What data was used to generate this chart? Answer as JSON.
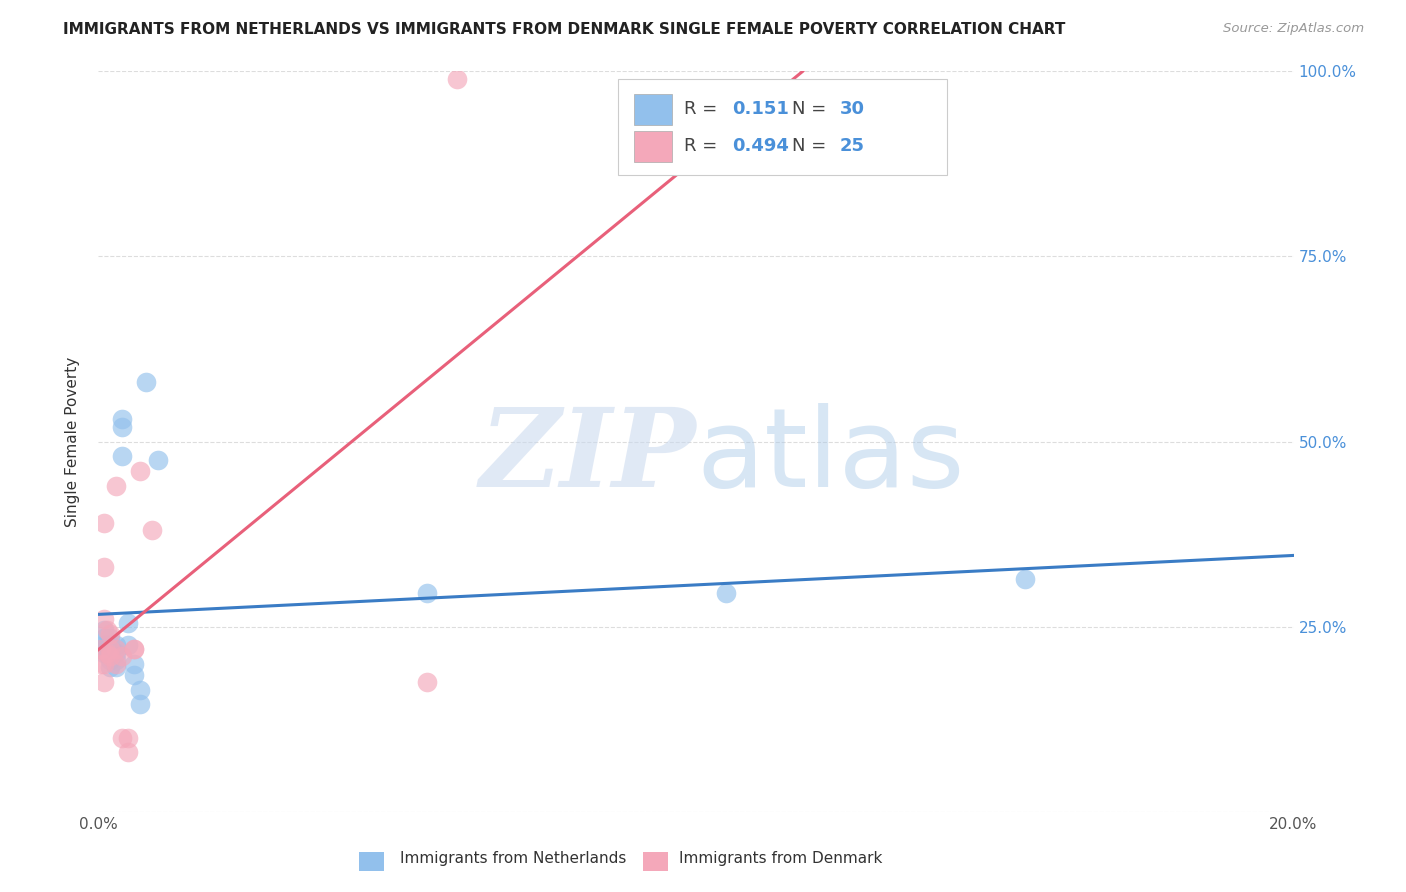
{
  "title": "IMMIGRANTS FROM NETHERLANDS VS IMMIGRANTS FROM DENMARK SINGLE FEMALE POVERTY CORRELATION CHART",
  "source": "Source: ZipAtlas.com",
  "ylabel": "Single Female Poverty",
  "xlim": [
    0.0,
    0.2
  ],
  "ylim": [
    0.0,
    1.0
  ],
  "legend_R_blue": "0.151",
  "legend_N_blue": "30",
  "legend_R_pink": "0.494",
  "legend_N_pink": "25",
  "blue_color": "#92C0EC",
  "pink_color": "#F4A8BA",
  "blue_line_color": "#3A7CC5",
  "pink_line_color": "#E8607A",
  "watermark_zip": "ZIP",
  "watermark_atlas": "atlas",
  "background_color": "#ffffff",
  "grid_color": "#dddddd",
  "netherlands_x": [
    0.0005,
    0.001,
    0.001,
    0.001,
    0.001,
    0.0015,
    0.0015,
    0.002,
    0.002,
    0.002,
    0.002,
    0.002,
    0.003,
    0.003,
    0.003,
    0.003,
    0.004,
    0.004,
    0.004,
    0.005,
    0.005,
    0.006,
    0.006,
    0.007,
    0.007,
    0.008,
    0.01,
    0.055,
    0.105,
    0.155
  ],
  "netherlands_y": [
    0.22,
    0.245,
    0.235,
    0.225,
    0.215,
    0.225,
    0.215,
    0.235,
    0.225,
    0.215,
    0.205,
    0.195,
    0.225,
    0.215,
    0.205,
    0.195,
    0.53,
    0.52,
    0.48,
    0.255,
    0.225,
    0.2,
    0.185,
    0.165,
    0.145,
    0.58,
    0.475,
    0.295,
    0.295,
    0.315
  ],
  "denmark_x": [
    0.0005,
    0.0005,
    0.001,
    0.001,
    0.001,
    0.001,
    0.001,
    0.0015,
    0.0015,
    0.002,
    0.002,
    0.002,
    0.003,
    0.003,
    0.003,
    0.004,
    0.004,
    0.005,
    0.005,
    0.006,
    0.006,
    0.007,
    0.009,
    0.055,
    0.06
  ],
  "denmark_y": [
    0.22,
    0.2,
    0.39,
    0.33,
    0.26,
    0.2,
    0.175,
    0.245,
    0.215,
    0.24,
    0.22,
    0.21,
    0.22,
    0.44,
    0.2,
    0.21,
    0.1,
    0.1,
    0.08,
    0.22,
    0.22,
    0.46,
    0.38,
    0.175,
    0.99
  ]
}
